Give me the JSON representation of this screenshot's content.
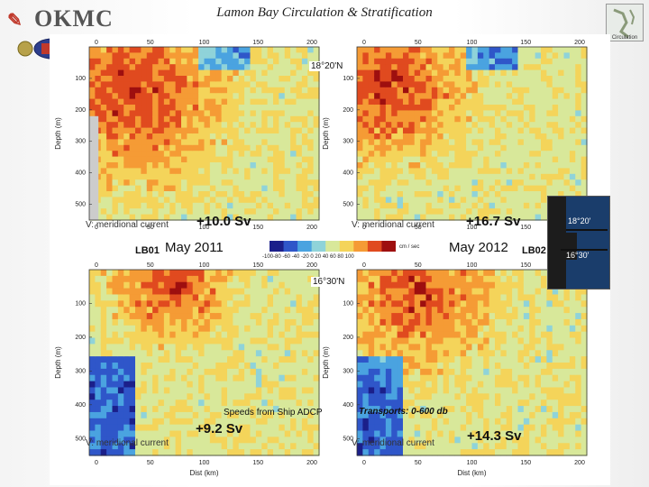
{
  "slide_title": "Lamon Bay Circulation & Stratification",
  "logo": {
    "text": "OKMC"
  },
  "top_map_label": "Circulation",
  "axes": {
    "y_label": "Depth (m)",
    "x_label": "Dist (km)",
    "x_ticks": [
      "0",
      "50",
      "100",
      "150",
      "200"
    ],
    "y_ticks": [
      "100",
      "200",
      "300",
      "400",
      "500"
    ]
  },
  "panels": [
    {
      "variable": "V: meridional current",
      "transport": "+10.0 Sv"
    },
    {
      "variable": "V: meridional current",
      "transport": "+16.7 Sv"
    },
    {
      "variable": "V: meridional current",
      "transport": "+9.2 Sv"
    },
    {
      "variable": "V: meridional current",
      "transport": "+14.3 Sv"
    }
  ],
  "months": {
    "left": "May 2011",
    "right": "May 2012"
  },
  "latitudes": {
    "upper": "18°20'N",
    "lower": "16°30'N"
  },
  "stations": {
    "left": "LB01",
    "right": "LB02"
  },
  "colorbar": {
    "unit": "cm / sec",
    "ticks": "-100-80 -60 -40 -20 0 20 40 60 80 100",
    "colors": [
      "#1b1f8a",
      "#2f56c9",
      "#4aa3e0",
      "#8fd3d9",
      "#d8e89a",
      "#f4d45a",
      "#f59b35",
      "#e04a1f",
      "#9e0f0f"
    ]
  },
  "notes": {
    "adcp": "Speeds from Ship ADCP",
    "transports": "Transports: 0-600 db"
  },
  "inset": {
    "upper": "18°20'",
    "lower": "16°30'"
  }
}
